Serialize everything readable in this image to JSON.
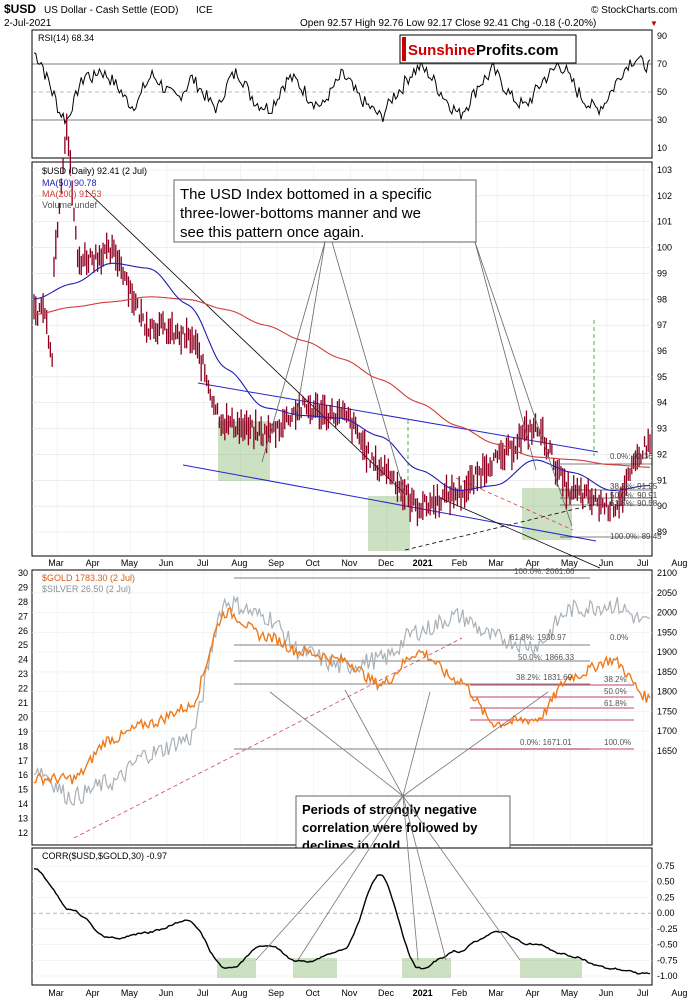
{
  "header": {
    "symbol": "$USD",
    "name": "US Dollar - Cash Settle (EOD)",
    "exchange": "ICE",
    "date": "2-Jul-2021",
    "ohlc": "Open 92.57  High 92.76  Low 92.17  Close 92.41  Chg -0.18 (-0.20%)",
    "chg_marker": "▼",
    "credit": "© StockCharts.com",
    "brand_part1": "Sunshine",
    "brand_part2": "Profits.com"
  },
  "colors": {
    "usd": "#8b0020",
    "ma50": "#1f1fb0",
    "ma200": "#d43c3c",
    "gold": "#f07a1a",
    "silver": "#a9b0b6",
    "corr": "#000000",
    "green_zone": "#6aa84f",
    "trend": "#2525d0",
    "fib_red": "#b0003a",
    "brand_red": "#cc0000"
  },
  "xaxis": {
    "labels": [
      "Mar",
      "Apr",
      "May",
      "Jun",
      "Jul",
      "Aug",
      "Sep",
      "Oct",
      "Nov",
      "Dec",
      "2021",
      "Feb",
      "Mar",
      "Apr",
      "May",
      "Jun",
      "Jul",
      "Aug"
    ],
    "bold_index": 10
  },
  "rsi": {
    "legend": "RSI(14) 68.34",
    "ticks": [
      "90",
      "70",
      "50",
      "30",
      "10"
    ],
    "values": [
      78,
      72,
      60,
      48,
      35,
      30,
      42,
      55,
      63,
      60,
      66,
      62,
      58,
      52,
      45,
      40,
      45,
      55,
      62,
      58,
      52,
      48,
      46,
      52,
      60,
      55,
      48,
      42,
      38,
      50,
      60,
      64,
      58,
      48,
      42,
      40,
      38,
      45,
      55,
      60,
      58,
      52,
      46,
      42,
      40,
      48,
      55,
      62,
      58,
      50,
      44,
      40,
      36,
      32,
      40,
      48,
      52,
      60,
      65,
      68,
      64,
      58,
      50,
      44,
      38,
      34,
      40,
      48,
      56,
      60,
      66,
      60,
      52,
      46,
      42,
      40,
      46,
      54,
      60,
      64,
      70,
      66,
      58,
      50,
      44,
      40,
      38,
      42,
      50,
      58,
      66,
      72,
      74,
      70,
      68
    ]
  },
  "usd_panel": {
    "legend_main": "$USD (Daily) 92.41 (2 Jul)",
    "legend_ma50": "MA(50) 90.78",
    "legend_ma200": "MA(200) 91.53",
    "legend_volume": "Volume undef",
    "ticks": [
      "103",
      "102",
      "101",
      "100",
      "99",
      "98",
      "97",
      "96",
      "95",
      "94",
      "93",
      "92",
      "91",
      "90",
      "89"
    ],
    "fib_labels": [
      "0.0%: 92.36",
      "38.2%: 91.25",
      "50.0%: 90.91",
      "61.8%: 90.58",
      "100.0%: 89.45"
    ],
    "callout": [
      "The USD Index bottomed in a specific",
      "three-lower-bottoms manner and we",
      "see this pattern once again."
    ]
  },
  "gold_panel": {
    "legend_gold": "$GOLD 1783.30 (2 Jul)",
    "legend_silver": "$SILVER 26.50 (2 Jul)",
    "left_ticks": [
      "30",
      "29",
      "28",
      "27",
      "26",
      "25",
      "24",
      "23",
      "22",
      "21",
      "20",
      "19",
      "18",
      "17",
      "16",
      "15",
      "14",
      "13",
      "12"
    ],
    "right_ticks": [
      "2100",
      "2050",
      "2000",
      "1950",
      "1900",
      "1850",
      "1800",
      "1750",
      "1700",
      "1650"
    ],
    "fib_labels": [
      "100.0%: 2061.66",
      "61.8%: 1930.97",
      "50.0%: 1866.33",
      "38.2%: 1831.69",
      "0.0%: 1671.01"
    ],
    "fib_labels2": [
      "0.0%",
      "38.2%",
      "50.0%",
      "61.8%",
      "100.0%"
    ],
    "callout": [
      "Periods of strongly negative",
      "correlation were followed by",
      "declines in gold."
    ]
  },
  "corr_panel": {
    "legend": "CORR($USD,$GOLD,30) -0.97",
    "ticks": [
      "0.75",
      "0.50",
      "0.25",
      "0.00",
      "-0.25",
      "-0.50",
      "-0.75",
      "-1.00"
    ]
  },
  "chart_data": {
    "type": "line",
    "title": "$USD US Dollar - Cash Settle (EOD)",
    "x": [
      "Mar",
      "Apr",
      "May",
      "Jun",
      "Jul",
      "Aug",
      "Sep",
      "Oct",
      "Nov",
      "Dec",
      "2021",
      "Feb",
      "Mar",
      "Apr",
      "May",
      "Jun",
      "Jul"
    ],
    "series": [
      {
        "name": "$USD",
        "values": [
          97.5,
          99.5,
          99.8,
          97.0,
          96.5,
          93.2,
          92.8,
          93.8,
          93.5,
          91.5,
          90.0,
          90.5,
          91.8,
          93.0,
          90.5,
          90.0,
          92.4
        ]
      },
      {
        "name": "MA(50)",
        "values": [
          98.0,
          98.6,
          99.4,
          99.2,
          97.8,
          95.3,
          93.8,
          93.5,
          93.4,
          92.7,
          91.4,
          90.6,
          90.8,
          91.8,
          91.3,
          90.6,
          90.8
        ]
      },
      {
        "name": "MA(200)",
        "values": [
          97.4,
          97.7,
          97.9,
          98.1,
          98.0,
          97.6,
          97.0,
          96.4,
          95.7,
          94.9,
          94.0,
          93.1,
          92.4,
          91.9,
          91.8,
          91.6,
          91.5
        ]
      },
      {
        "name": "$GOLD",
        "values": [
          1580,
          1580,
          1680,
          1720,
          1760,
          2000,
          1940,
          1900,
          1880,
          1820,
          1900,
          1830,
          1720,
          1730,
          1840,
          1880,
          1783
        ]
      },
      {
        "name": "$SILVER",
        "values": [
          16.5,
          14.5,
          15.5,
          17.5,
          18.5,
          28.0,
          27.0,
          24.5,
          23.5,
          24.0,
          26.0,
          27.0,
          25.5,
          25.0,
          27.5,
          27.8,
          26.5
        ]
      },
      {
        "name": "CORR($USD,$GOLD,30)",
        "values": [
          0.7,
          0.05,
          -0.4,
          -0.3,
          -0.1,
          -0.9,
          -0.5,
          -0.8,
          -0.6,
          0.6,
          -0.9,
          -0.6,
          -0.3,
          -0.5,
          -0.7,
          -0.9,
          -0.97
        ]
      }
    ],
    "usd_ylim": [
      89,
      103
    ],
    "gold_ylim": [
      1650,
      2100
    ],
    "silver_ylim": [
      12,
      30
    ],
    "corr_ylim": [
      -1.0,
      0.75
    ],
    "rsi_ylim": [
      10,
      90
    ]
  }
}
